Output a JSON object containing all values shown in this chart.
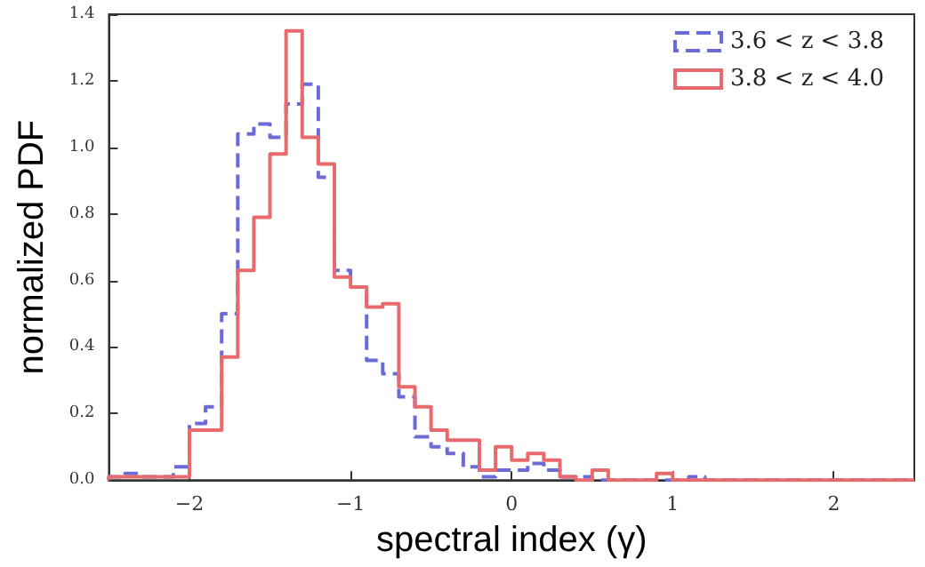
{
  "chart_data": {
    "type": "histogram",
    "xlabel": "spectral index (γ)",
    "ylabel": "normalized PDF",
    "bins": [
      -2.5,
      -2.4,
      -2.3,
      -2.2,
      -2.1,
      -2.0,
      -1.9,
      -1.8,
      -1.7,
      -1.6,
      -1.5,
      -1.4,
      -1.3,
      -1.2,
      -1.1,
      -1.0,
      -0.9,
      -0.8,
      -0.7,
      -0.6,
      -0.5,
      -0.4,
      -0.3,
      -0.2,
      -0.1,
      0.0,
      0.1,
      0.2,
      0.3,
      0.4,
      0.5,
      0.6,
      0.7,
      0.8,
      0.9,
      1.0,
      1.1,
      1.2,
      1.3,
      1.4,
      1.5,
      1.6,
      1.7,
      1.8,
      1.9,
      2.0,
      2.1,
      2.2,
      2.3,
      2.4,
      2.5
    ],
    "series": [
      {
        "name": "3.6 < z < 3.8",
        "color": "#6b6bd8",
        "line_style": "dashed",
        "values": [
          0.01,
          0.02,
          0.01,
          0.01,
          0.04,
          0.17,
          0.22,
          0.5,
          1.04,
          1.07,
          1.03,
          1.13,
          1.19,
          0.91,
          0.63,
          0.58,
          0.36,
          0.32,
          0.25,
          0.13,
          0.1,
          0.08,
          0.04,
          0.01,
          0.03,
          0.03,
          0.05,
          0.03,
          0.01,
          0.01,
          0,
          0,
          0,
          0,
          0,
          0,
          0.01,
          0,
          0,
          0,
          0,
          0,
          0,
          0,
          0,
          0,
          0,
          0,
          0,
          0
        ]
      },
      {
        "name": "3.8 < z < 4.0",
        "color": "#e86a6c",
        "line_style": "solid",
        "values": [
          0.01,
          0.01,
          0.01,
          0.01,
          0.01,
          0.15,
          0.15,
          0.37,
          0.63,
          0.79,
          0.98,
          1.35,
          1.03,
          0.95,
          0.61,
          0.58,
          0.52,
          0.53,
          0.28,
          0.22,
          0.15,
          0.12,
          0.12,
          0.03,
          0.1,
          0.06,
          0.08,
          0.06,
          0.01,
          0,
          0.03,
          0,
          0,
          0,
          0.02,
          0,
          0,
          0,
          0,
          0,
          0,
          0,
          0,
          0,
          0,
          0,
          0,
          0,
          0,
          0
        ]
      }
    ],
    "xlim": [
      -2.5,
      2.5
    ],
    "xticks": [
      -2,
      -1,
      0,
      1,
      2
    ],
    "ylim": [
      0,
      1.4
    ],
    "yticks": [
      {
        "value": 0,
        "label": "0.0"
      },
      {
        "value": 0.2,
        "label": "0.2"
      },
      {
        "value": 0.4,
        "label": "0.4"
      },
      {
        "value": 0.6,
        "label": "0.6"
      },
      {
        "value": 0.8,
        "label": "0.8"
      },
      {
        "value": 1.0,
        "label": "1.0"
      },
      {
        "value": 1.2,
        "label": "1.2"
      },
      {
        "value": 1.4,
        "label": "1.4"
      }
    ],
    "legend": "top right"
  }
}
